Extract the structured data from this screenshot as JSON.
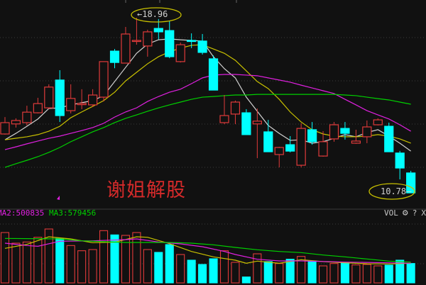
{
  "watermark": "谢姐解股",
  "indicators": {
    "ma2_label": "MA2:500835",
    "ma3_label": "MA3:579456"
  },
  "toolbar": {
    "vol": "VOL",
    "settings_icon": "gear-icon",
    "help": "?",
    "close": "X"
  },
  "colors": {
    "up": "#e03a3a",
    "down": "#00ffff",
    "ma5": "#d0d0d0",
    "ma10": "#c8c000",
    "ma20": "#e020e0",
    "ma60": "#00d000",
    "annotation": "#c8c000",
    "background": "#111111"
  },
  "chart_data": [
    {
      "type": "candlestick",
      "title": "",
      "grid": true,
      "annotations": [
        {
          "label": "18.96",
          "candle": 13,
          "kind": "high"
        },
        {
          "label": "10.78",
          "candle": 38,
          "kind": "low"
        }
      ],
      "ohlc": [
        [
          13.53,
          14.32,
          13.5,
          14.06
        ],
        [
          14.0,
          14.26,
          13.83,
          14.16
        ],
        [
          14.06,
          14.85,
          13.93,
          14.55
        ],
        [
          14.52,
          15.22,
          14.49,
          14.95
        ],
        [
          14.75,
          15.85,
          14.69,
          15.72
        ],
        [
          16.05,
          16.51,
          14.09,
          14.39
        ],
        [
          14.62,
          15.85,
          14.49,
          15.19
        ],
        [
          14.9,
          15.62,
          14.69,
          14.96
        ],
        [
          14.89,
          15.62,
          14.79,
          15.35
        ],
        [
          15.25,
          16.91,
          15.05,
          16.91
        ],
        [
          17.4,
          17.5,
          16.6,
          16.87
        ],
        [
          16.84,
          18.53,
          16.84,
          18.2
        ],
        [
          17.88,
          18.96,
          17.7,
          17.9
        ],
        [
          17.64,
          18.4,
          17.14,
          18.3
        ],
        [
          18.46,
          18.9,
          17.95,
          18.3
        ],
        [
          18.36,
          18.8,
          17.07,
          17.14
        ],
        [
          16.91,
          17.8,
          16.87,
          17.7
        ],
        [
          17.9,
          18.23,
          17.54,
          17.87
        ],
        [
          17.87,
          18.2,
          17.24,
          17.34
        ],
        [
          17.04,
          17.2,
          15.58,
          15.58
        ],
        [
          14.06,
          15.35,
          13.99,
          14.39
        ],
        [
          14.46,
          15.09,
          13.99,
          15.02
        ],
        [
          14.52,
          14.69,
          13.5,
          13.5
        ],
        [
          14.0,
          14.72,
          12.4,
          14.13
        ],
        [
          13.63,
          14.19,
          12.7,
          12.7
        ],
        [
          12.57,
          12.93,
          11.97,
          12.9
        ],
        [
          13.03,
          13.43,
          12.67,
          12.73
        ],
        [
          12.07,
          14.03,
          11.97,
          13.79
        ],
        [
          13.73,
          14.09,
          13.03,
          13.17
        ],
        [
          12.5,
          13.66,
          12.47,
          13.17
        ],
        [
          13.3,
          14.09,
          13.17,
          13.96
        ],
        [
          13.79,
          14.09,
          13.27,
          13.56
        ],
        [
          13.1,
          13.73,
          13.07,
          13.2
        ],
        [
          13.4,
          14.16,
          13.1,
          13.86
        ],
        [
          13.96,
          14.26,
          13.93,
          14.19
        ],
        [
          13.89,
          14.06,
          12.7,
          12.7
        ],
        [
          12.64,
          12.74,
          11.41,
          11.94
        ],
        [
          11.71,
          11.81,
          10.78,
          10.78
        ]
      ],
      "series": [
        {
          "key": "ma5",
          "values": [
            13.26,
            13.56,
            13.89,
            14.23,
            14.72,
            14.75,
            14.89,
            14.99,
            15.09,
            15.32,
            15.98,
            16.64,
            17.3,
            17.73,
            17.93,
            17.97,
            17.93,
            17.9,
            17.87,
            17.14,
            16.58,
            16.15,
            15.25,
            14.59,
            13.93,
            13.56,
            13.23,
            13.26,
            13.1,
            13.17,
            13.33,
            13.5,
            13.4,
            13.6,
            13.73,
            13.43,
            13.1,
            12.73
          ]
        },
        {
          "key": "ma10",
          "values": [
            13.26,
            13.33,
            13.4,
            13.5,
            13.66,
            13.89,
            14.29,
            14.56,
            14.82,
            15.09,
            15.48,
            16.01,
            16.41,
            16.81,
            17.14,
            17.37,
            17.54,
            17.67,
            17.7,
            17.5,
            17.3,
            16.97,
            16.48,
            15.98,
            15.65,
            15.15,
            14.56,
            14.09,
            13.73,
            13.53,
            13.43,
            13.4,
            13.4,
            13.43,
            13.5,
            13.43,
            13.3,
            13.1
          ]
        },
        {
          "key": "ma20",
          "values": [
            12.8,
            12.93,
            13.07,
            13.2,
            13.33,
            13.43,
            13.56,
            13.69,
            13.83,
            14.03,
            14.32,
            14.56,
            14.75,
            15.05,
            15.28,
            15.48,
            15.62,
            15.88,
            16.15,
            16.28,
            16.31,
            16.31,
            16.28,
            16.25,
            16.15,
            16.05,
            15.95,
            15.81,
            15.68,
            15.55,
            15.42,
            15.15,
            14.89,
            14.62,
            14.42,
            14.23,
            13.96,
            13.66
          ]
        },
        {
          "key": "ma60",
          "values": [
            11.97,
            12.14,
            12.3,
            12.47,
            12.67,
            12.9,
            13.17,
            13.4,
            13.63,
            13.83,
            14.06,
            14.26,
            14.42,
            14.59,
            14.75,
            14.89,
            15.02,
            15.15,
            15.25,
            15.28,
            15.32,
            15.35,
            15.35,
            15.38,
            15.38,
            15.38,
            15.38,
            15.38,
            15.38,
            15.38,
            15.38,
            15.35,
            15.32,
            15.25,
            15.18,
            15.12,
            15.02,
            14.92
          ]
        }
      ]
    },
    {
      "type": "bar",
      "title": "VOL",
      "note": "relative volume, no axis printed",
      "values": [
        213,
        168,
        173,
        193,
        228,
        188,
        158,
        136,
        141,
        221,
        203,
        201,
        213,
        141,
        129,
        162,
        120,
        96,
        78,
        102,
        136,
        87,
        25,
        123,
        90,
        82,
        100,
        112,
        93,
        72,
        82,
        86,
        76,
        78,
        72,
        75,
        96,
        82
      ],
      "series": [
        {
          "key": "vma1",
          "points": [
            [
              1,
              146
            ],
            [
              3,
              163
            ],
            [
              5,
              195
            ],
            [
              7,
              186
            ],
            [
              9,
              170
            ],
            [
              11,
              172
            ],
            [
              13,
              195
            ],
            [
              14,
              193
            ],
            [
              16,
              166
            ],
            [
              18,
              133
            ],
            [
              20,
              110
            ],
            [
              22,
              96
            ],
            [
              23,
              83
            ],
            [
              24,
              92
            ],
            [
              26,
              83
            ],
            [
              28,
              98
            ],
            [
              30,
              90
            ],
            [
              32,
              85
            ],
            [
              34,
              81
            ],
            [
              36,
              80
            ],
            [
              38,
              83
            ]
          ]
        },
        {
          "key": "ma2",
          "name": "MA2",
          "points": [
            [
              1,
              168
            ],
            [
              3,
              158
            ],
            [
              4,
              155
            ],
            [
              6,
              176
            ],
            [
              9,
              178
            ],
            [
              12,
              183
            ],
            [
              13,
              186
            ],
            [
              15,
              173
            ],
            [
              17,
              165
            ],
            [
              19,
              153
            ],
            [
              21,
              133
            ],
            [
              22,
              120
            ],
            [
              24,
              100
            ],
            [
              26,
              93
            ],
            [
              28,
              93
            ],
            [
              32,
              88
            ],
            [
              36,
              85
            ],
            [
              38,
              83
            ]
          ]
        },
        {
          "key": "ma3",
          "name": "MA3",
          "points": [
            [
              1,
              188
            ],
            [
              6,
              186
            ],
            [
              8,
              178
            ],
            [
              12,
              171
            ],
            [
              16,
              171
            ],
            [
              18,
              168
            ],
            [
              20,
              161
            ],
            [
              22,
              150
            ],
            [
              24,
              140
            ],
            [
              26,
              133
            ],
            [
              28,
              128
            ],
            [
              30,
              118
            ],
            [
              32,
              110
            ],
            [
              34,
              101
            ],
            [
              36,
              92
            ],
            [
              38,
              88
            ]
          ]
        }
      ]
    }
  ]
}
